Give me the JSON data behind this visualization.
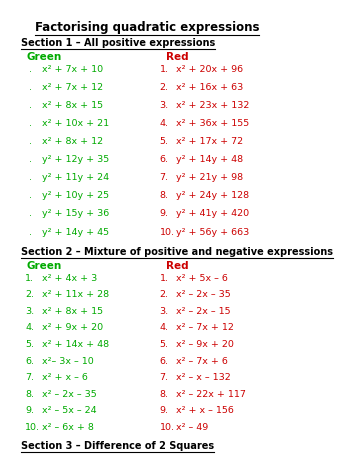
{
  "title": "Factorising quadratic expressions",
  "section1_header": "Section 1 – All positive expressions",
  "section2_header": "Section 2 – Mixture of positive and negative expressions",
  "section3_header": "Section 3 – Difference of 2 Squares",
  "green_label": "Green",
  "red_label": "Red",
  "green_color": "#00aa00",
  "red_color": "#cc0000",
  "black_color": "#000000",
  "bg_color": "#ffffff",
  "section1_green": [
    "x² + 7x + 10",
    "x² + 7x + 12",
    "x² + 8x + 15",
    "x² + 10x + 21",
    "x² + 8x + 12",
    "y² + 12y + 35",
    "y² + 11y + 24",
    "y² + 10y + 25",
    "y² + 15y + 36",
    "y² + 14y + 45"
  ],
  "section1_red": [
    "x² + 20x + 96",
    "x² + 16x + 63",
    "x² + 23x + 132",
    "x² + 36x + 155",
    "x² + 17x + 72",
    "y² + 14y + 48",
    "y² + 21y + 98",
    "y² + 24y + 128",
    "y² + 41y + 420",
    "y² + 56y + 663"
  ],
  "section2_green": [
    "x² + 4x + 3",
    "x² + 11x + 28",
    "x² + 8x + 15",
    "x² + 9x + 20",
    "x² + 14x + 48",
    "x²– 3x – 10",
    "x² + x – 6",
    "x² – 2x – 35",
    "x² – 5x – 24",
    "x² – 6x + 8"
  ],
  "section2_red": [
    "x² + 5x – 6",
    "x² – 2x – 35",
    "x² – 2x – 15",
    "x² – 7x + 12",
    "x² – 9x + 20",
    "x² – 7x + 6",
    "x² – x – 132",
    "x² – 22x + 117",
    "x² + x – 156",
    "x² – 49"
  ],
  "title_fs": 8.5,
  "section_fs": 7.0,
  "label_fs": 7.5,
  "item_fs": 6.8
}
